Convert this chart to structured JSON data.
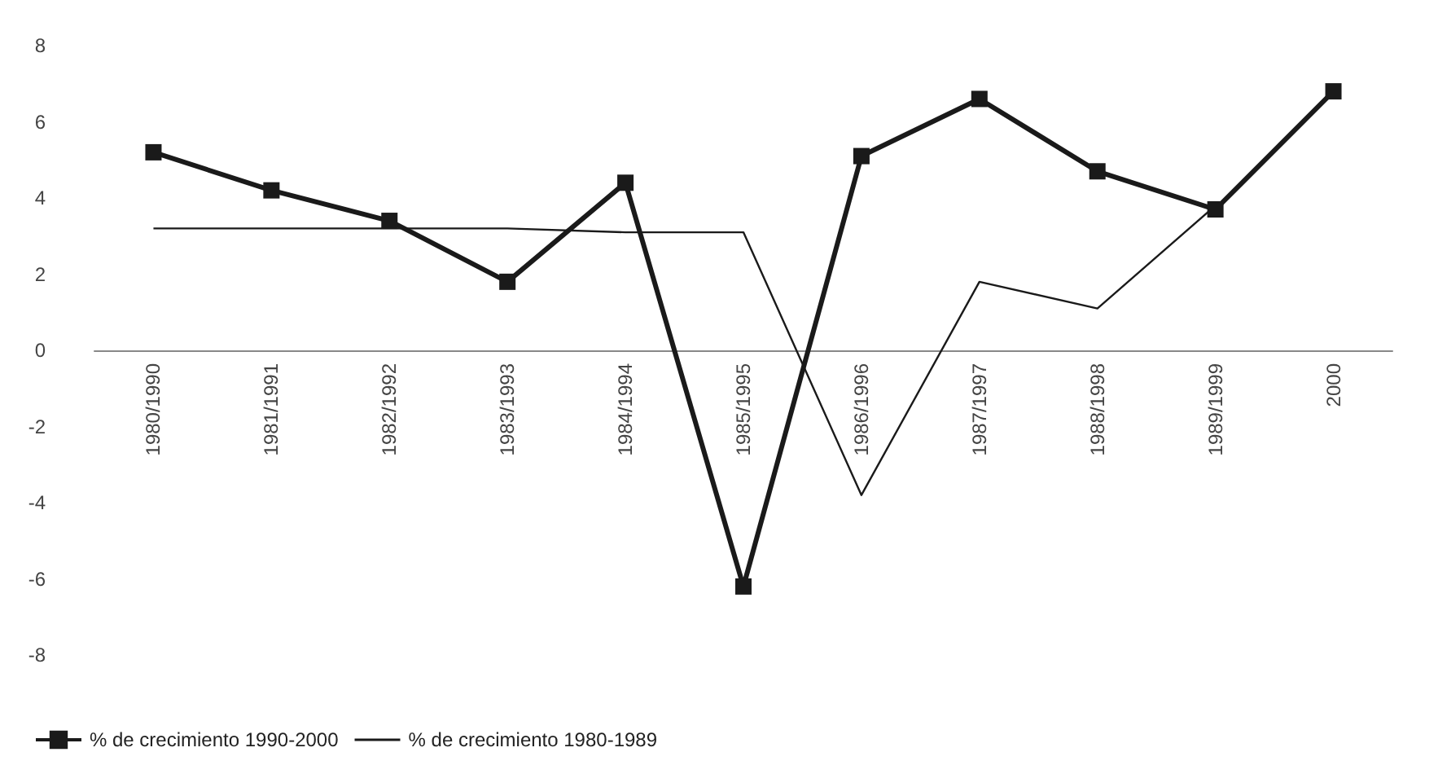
{
  "chart_data": {
    "type": "line",
    "categories": [
      "1980/1990",
      "1981/1991",
      "1982/1992",
      "1983/1993",
      "1984/1994",
      "1985/1995",
      "1986/1996",
      "1987/1997",
      "1988/1998",
      "1989/1999",
      "2000"
    ],
    "series": [
      {
        "name": "% de crecimiento 1990-2000",
        "color": "#1a1a1a",
        "marker": "square",
        "values": [
          5.2,
          4.2,
          3.4,
          1.8,
          4.4,
          -6.2,
          5.1,
          6.6,
          4.7,
          3.7,
          6.8
        ]
      },
      {
        "name": "% de crecimiento 1980-1989",
        "color": "#1a1a1a",
        "marker": "none",
        "values": [
          3.2,
          3.2,
          3.2,
          3.2,
          3.1,
          3.1,
          -3.8,
          1.8,
          1.1,
          3.8,
          null
        ]
      }
    ],
    "ylim": [
      -8,
      8
    ],
    "yticks": [
      -8,
      -6,
      -4,
      -2,
      0,
      2,
      4,
      6,
      8
    ],
    "grid": false,
    "legend": "bottom left"
  }
}
